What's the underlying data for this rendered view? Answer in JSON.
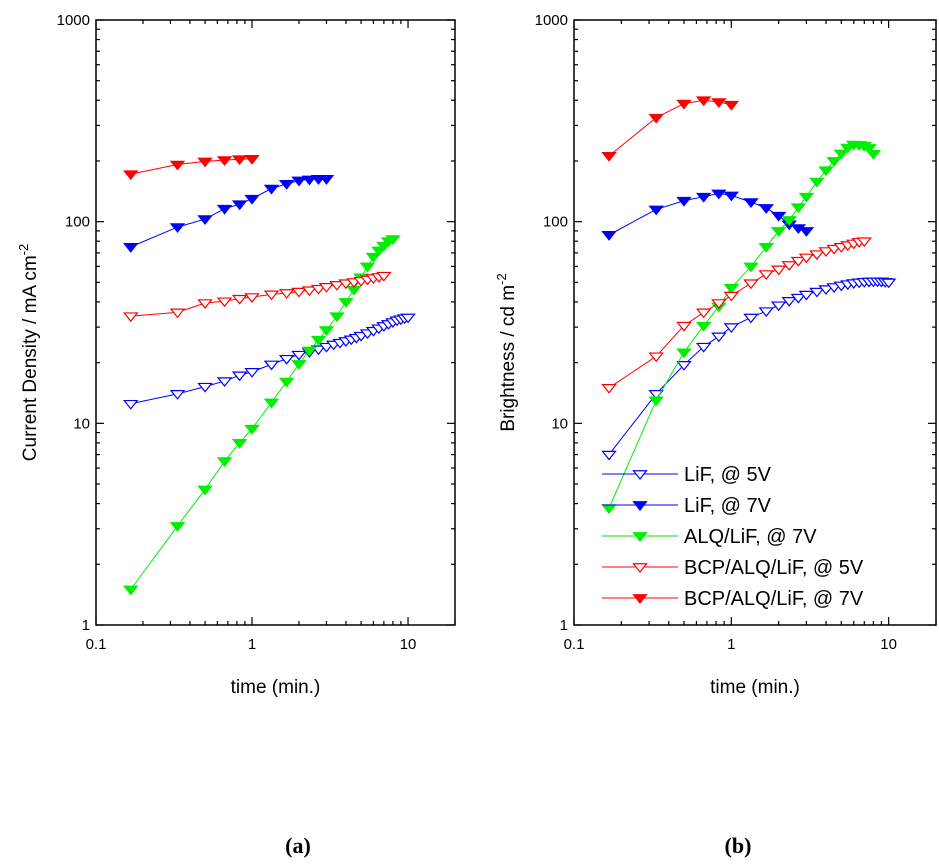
{
  "colors": {
    "blue": "#0000ff",
    "red": "#ff0000",
    "green": "#00ee00"
  },
  "chart_data": [
    {
      "type": "scatter",
      "caption": "(a)",
      "xlabel": "time (min.)",
      "ylabel": "Current Density / mA cm",
      "ylabel_sup": "-2",
      "x_scale": "log",
      "y_scale": "log",
      "xlim": [
        0.1,
        20
      ],
      "ylim": [
        1,
        1000
      ],
      "x_ticks": [
        {
          "v": 0.1,
          "label": "0.1"
        },
        {
          "v": 1,
          "label": "1"
        },
        {
          "v": 10,
          "label": "10"
        }
      ],
      "y_ticks": [
        {
          "v": 1,
          "label": "1"
        },
        {
          "v": 10,
          "label": "10"
        },
        {
          "v": 100,
          "label": "100"
        },
        {
          "v": 1000,
          "label": "1000"
        }
      ],
      "grid": false,
      "series": [
        {
          "name": "LiF, @ 5V",
          "color": "#0000ff",
          "filled": false,
          "x": [
            0.167,
            0.333,
            0.5,
            0.667,
            0.833,
            1.0,
            1.333,
            1.667,
            2.0,
            2.333,
            2.667,
            3.0,
            3.333,
            3.667,
            4.0,
            4.333,
            4.667,
            5.0,
            5.5,
            6.0,
            6.5,
            7.0,
            7.5,
            8.0,
            8.5,
            9.0,
            9.5,
            10.0
          ],
          "y": [
            12.5,
            14.0,
            15.2,
            16.2,
            17.3,
            18.0,
            19.6,
            20.9,
            21.9,
            22.6,
            23.3,
            24.0,
            24.6,
            25.1,
            25.6,
            26.1,
            26.6,
            27.2,
            28.0,
            28.8,
            29.6,
            30.4,
            31.1,
            31.8,
            32.4,
            32.8,
            33.2,
            33.5
          ]
        },
        {
          "name": "LiF, @ 7V",
          "color": "#0000ff",
          "filled": true,
          "x": [
            0.167,
            0.333,
            0.5,
            0.667,
            0.833,
            1.0,
            1.333,
            1.667,
            2.0,
            2.333,
            2.667,
            3.0
          ],
          "y": [
            75,
            94,
            103,
            116,
            122,
            130,
            146,
            154,
            160,
            162,
            163,
            163
          ]
        },
        {
          "name": "ALQ/LiF, @ 7V",
          "color": "#00ee00",
          "filled": true,
          "x": [
            0.167,
            0.333,
            0.5,
            0.667,
            0.833,
            1.0,
            1.333,
            1.667,
            2.0,
            2.333,
            2.667,
            3.0,
            3.5,
            4.0,
            4.5,
            5.0,
            5.5,
            6.0,
            6.5,
            7.0,
            7.5,
            8.0
          ],
          "y": [
            1.5,
            3.1,
            4.7,
            6.5,
            8.0,
            9.4,
            12.7,
            16.1,
            19.7,
            23.0,
            26.0,
            29.0,
            34.0,
            40.0,
            46.0,
            53.0,
            60.0,
            67.0,
            72.0,
            76.0,
            80.0,
            82.0
          ]
        },
        {
          "name": "BCP/ALQ/LiF, @ 5V",
          "color": "#ff0000",
          "filled": false,
          "x": [
            0.167,
            0.333,
            0.5,
            0.667,
            0.833,
            1.0,
            1.333,
            1.667,
            2.0,
            2.333,
            2.667,
            3.0,
            3.5,
            4.0,
            4.5,
            5.0,
            5.5,
            6.0,
            6.5,
            7.0
          ],
          "y": [
            34,
            35.5,
            39.5,
            40.3,
            41.5,
            42.3,
            43.6,
            44.3,
            45.0,
            45.7,
            46.5,
            47.5,
            48.6,
            49.5,
            50.2,
            50.9,
            51.7,
            52.5,
            53.2,
            54.0
          ]
        },
        {
          "name": "BCP/ALQ/LiF, @ 7V",
          "color": "#ff0000",
          "filled": true,
          "x": [
            0.167,
            0.333,
            0.5,
            0.667,
            0.833,
            1.0
          ],
          "y": [
            172,
            192,
            199,
            202,
            204,
            205
          ]
        }
      ]
    },
    {
      "type": "scatter",
      "caption": "(b)",
      "xlabel": "time (min.)",
      "ylabel": "Brightness / cd m",
      "ylabel_sup": "-2",
      "x_scale": "log",
      "y_scale": "log",
      "xlim": [
        0.1,
        20
      ],
      "ylim": [
        1,
        1000
      ],
      "x_ticks": [
        {
          "v": 0.1,
          "label": "0.1"
        },
        {
          "v": 1,
          "label": "1"
        },
        {
          "v": 10,
          "label": "10"
        }
      ],
      "y_ticks": [
        {
          "v": 1,
          "label": "1"
        },
        {
          "v": 10,
          "label": "10"
        },
        {
          "v": 100,
          "label": "100"
        },
        {
          "v": 1000,
          "label": "1000"
        }
      ],
      "grid": false,
      "legend_position": "bottom-right",
      "series": [
        {
          "name": "LiF, @ 5V",
          "color": "#0000ff",
          "filled": false,
          "x": [
            0.167,
            0.333,
            0.5,
            0.667,
            0.833,
            1.0,
            1.333,
            1.667,
            2.0,
            2.333,
            2.667,
            3.0,
            3.5,
            4.0,
            4.5,
            5.0,
            5.5,
            6.0,
            6.5,
            7.0,
            7.5,
            8.0,
            8.5,
            9.0,
            9.5,
            10.0
          ],
          "y": [
            7.0,
            14.0,
            19.5,
            24.0,
            27.0,
            30.0,
            33.5,
            36.0,
            38.5,
            40.5,
            42.0,
            43.5,
            45.0,
            46.3,
            47.4,
            48.3,
            49.0,
            49.6,
            50.0,
            50.3,
            50.5,
            50.6,
            50.6,
            50.5,
            50.3,
            50.0
          ]
        },
        {
          "name": "LiF, @ 7V",
          "color": "#0000ff",
          "filled": true,
          "x": [
            0.167,
            0.333,
            0.5,
            0.667,
            0.833,
            1.0,
            1.333,
            1.667,
            2.0,
            2.333,
            2.667,
            3.0
          ],
          "y": [
            86,
            115,
            127,
            133,
            138,
            135,
            125,
            117,
            107,
            97,
            93,
            90
          ]
        },
        {
          "name": "ALQ/LiF, @ 7V",
          "color": "#00ee00",
          "filled": true,
          "x": [
            0.167,
            0.333,
            0.5,
            0.667,
            0.833,
            1.0,
            1.333,
            1.667,
            2.0,
            2.333,
            2.667,
            3.0,
            3.5,
            4.0,
            4.5,
            5.0,
            5.5,
            6.0,
            6.5,
            7.0,
            7.5,
            8.0
          ],
          "y": [
            3.8,
            13.0,
            22.5,
            30.5,
            38.0,
            47.0,
            60.0,
            75.0,
            90.0,
            102.0,
            118.0,
            133.0,
            158.0,
            180.0,
            200.0,
            218.0,
            233.0,
            241.0,
            240.0,
            238.0,
            232.0,
            217.0
          ]
        },
        {
          "name": "BCP/ALQ/LiF, @ 5V",
          "color": "#ff0000",
          "filled": false,
          "x": [
            0.167,
            0.333,
            0.5,
            0.667,
            0.833,
            1.0,
            1.333,
            1.667,
            2.0,
            2.333,
            2.667,
            3.0,
            3.5,
            4.0,
            4.5,
            5.0,
            5.5,
            6.0,
            6.5,
            7.0
          ],
          "y": [
            15.0,
            21.5,
            30.5,
            35.5,
            39.5,
            43.0,
            49.5,
            55.0,
            58.0,
            61.0,
            64.0,
            66.5,
            69.0,
            71.5,
            73.5,
            75.0,
            76.5,
            78.0,
            79.5,
            80.0
          ]
        },
        {
          "name": "BCP/ALQ/LiF, @ 7V",
          "color": "#ff0000",
          "filled": true,
          "x": [
            0.167,
            0.333,
            0.5,
            0.667,
            0.833,
            1.0
          ],
          "y": [
            212,
            328,
            385,
            400,
            392,
            380
          ]
        }
      ]
    }
  ]
}
